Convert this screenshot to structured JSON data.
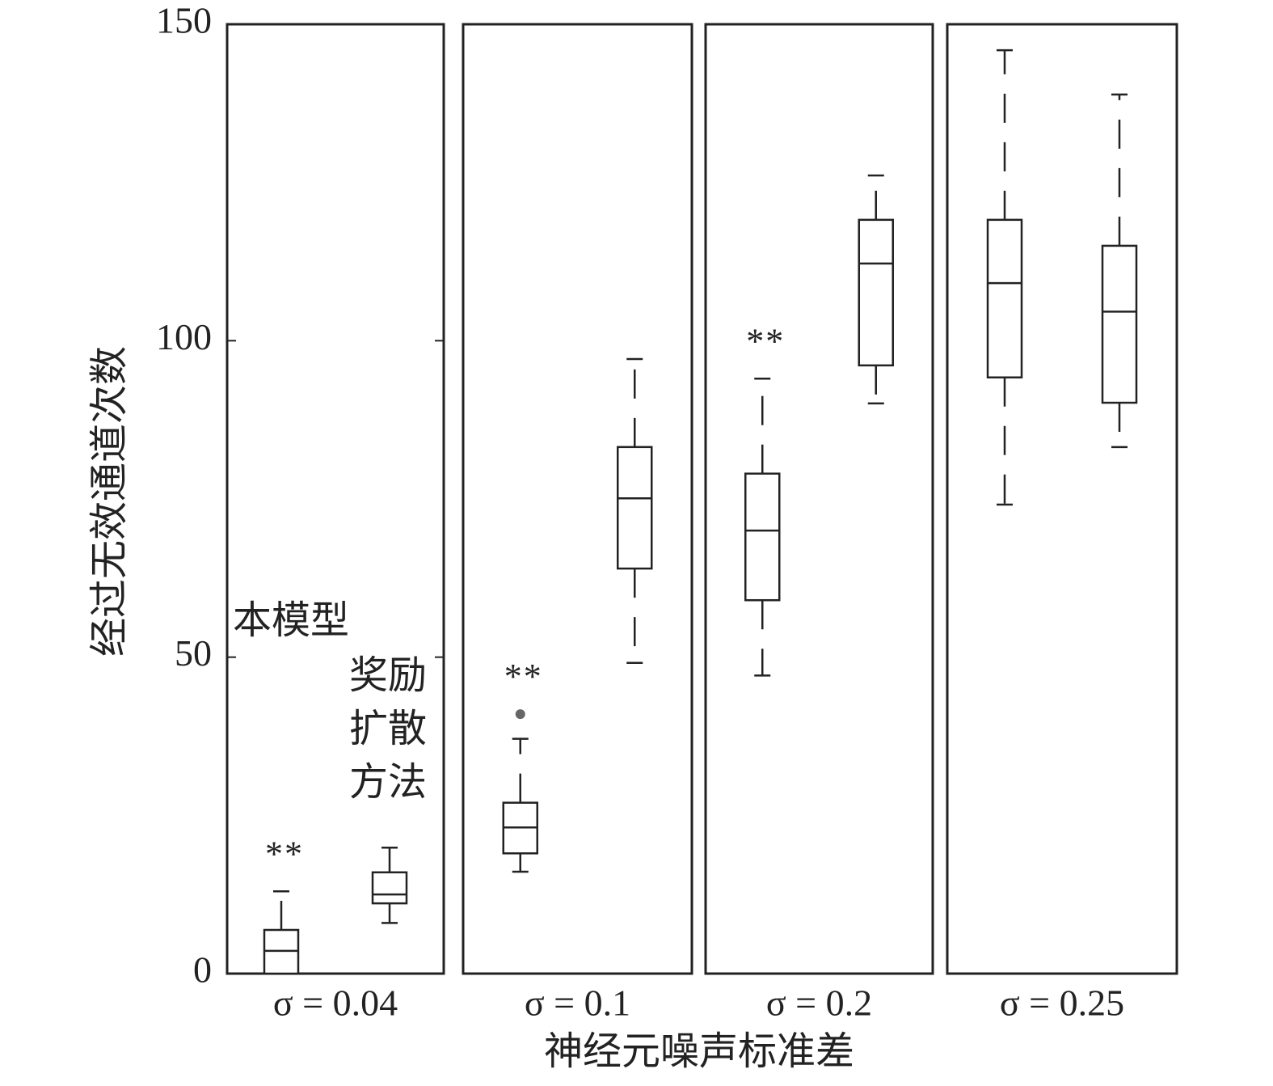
{
  "chart_data": {
    "type": "box",
    "ylabel": "经过无效通道次数",
    "xlabel": "神经元噪声标准差",
    "categories": [
      "σ = 0.04",
      "σ = 0.1",
      "σ = 0.2",
      "σ = 0.25"
    ],
    "ylim": [
      0,
      150
    ],
    "yticks": [
      0,
      50,
      100,
      150
    ],
    "color": "#222222",
    "outlier_color": "#666666",
    "series": [
      {
        "name": "本模型",
        "whisker_low": [
          0,
          16.1,
          47.1,
          74.1
        ],
        "q1": [
          0,
          19.0,
          59.0,
          94.2
        ],
        "median": [
          3.6,
          23.1,
          70.0,
          109.1
        ],
        "q3": [
          6.9,
          27.0,
          79.0,
          119.1
        ],
        "whisker_high": [
          13.0,
          37.1,
          94.0,
          145.9
        ],
        "outliers": [
          [],
          [
            41.0
          ],
          [],
          []
        ],
        "significance": [
          "**",
          "**",
          "**",
          null
        ]
      },
      {
        "name": "奖励扩散方法",
        "whisker_low": [
          8.0,
          49.1,
          90.1,
          83.2
        ],
        "q1": [
          11.1,
          64.0,
          96.1,
          90.2
        ],
        "median": [
          12.5,
          75.1,
          112.2,
          104.6
        ],
        "q3": [
          16.0,
          83.2,
          119.1,
          115.0
        ],
        "whisker_high": [
          19.9,
          97.1,
          126.1,
          138.9
        ],
        "outliers": [
          [],
          [],
          [],
          []
        ],
        "significance": [
          null,
          null,
          null,
          null
        ]
      }
    ]
  }
}
